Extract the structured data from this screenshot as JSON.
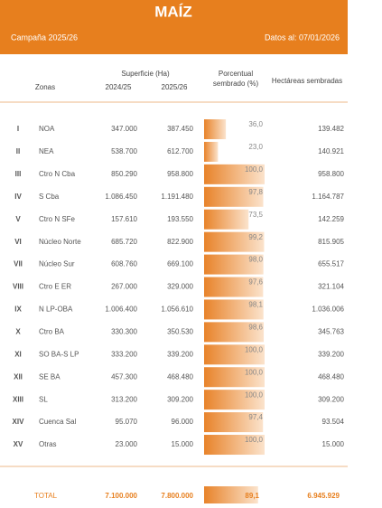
{
  "header": {
    "title": "MAÍZ",
    "campaign": "Campaña 2025/26",
    "date": "Datos al: 07/01/2026"
  },
  "table": {
    "columns": {
      "group": "Superficie (Ha)",
      "zones": "Zonas",
      "prev": "2024/25",
      "curr": "2025/26",
      "percent": "Porcentual sembrado (%)",
      "hectares": "Hectáreas sembradas"
    },
    "rows": [
      [
        "I",
        "NOA",
        "347.000",
        "387.450",
        "36,0",
        "139.482"
      ],
      [
        "II",
        "NEA",
        "538.700",
        "612.700",
        "23,0",
        "140.921"
      ],
      [
        "III",
        "Ctro N Cba",
        "850.290",
        "958.800",
        "100,0",
        "958.800"
      ],
      [
        "IV",
        "S Cba",
        "1.086.450",
        "1.191.480",
        "97,8",
        "1.164.787"
      ],
      [
        "V",
        "Ctro N SFe",
        "157.610",
        "193.550",
        "73,5",
        "142.259"
      ],
      [
        "VI",
        "Núcleo Norte",
        "685.720",
        "822.900",
        "99,2",
        "815.905"
      ],
      [
        "VII",
        "Núcleo Sur",
        "608.760",
        "669.100",
        "98,0",
        "655.517"
      ],
      [
        "VIII",
        "Ctro E ER",
        "267.000",
        "329.000",
        "97,6",
        "321.104"
      ],
      [
        "IX",
        "N LP-OBA",
        "1.006.400",
        "1.056.610",
        "98,1",
        "1.036.006"
      ],
      [
        "X",
        "Ctro BA",
        "330.300",
        "350.530",
        "98,6",
        "345.763"
      ],
      [
        "XI",
        "SO BA-S LP",
        "333.200",
        "339.200",
        "100,0",
        "339.200"
      ],
      [
        "XII",
        "SE BA",
        "457.300",
        "468.480",
        "100,0",
        "468.480"
      ],
      [
        "XIII",
        "SL",
        "313.200",
        "309.200",
        "100,0",
        "309.200"
      ],
      [
        "XIV",
        "Cuenca Sal",
        "95.070",
        "96.000",
        "97,4",
        "93.504"
      ],
      [
        "XV",
        "Otras",
        "23.000",
        "15.000",
        "100,0",
        "15.000"
      ]
    ],
    "percent_values": [
      36.0,
      23.0,
      100.0,
      97.8,
      73.5,
      99.2,
      98.0,
      97.6,
      98.1,
      98.6,
      100.0,
      100.0,
      100.0,
      97.4,
      100.0
    ],
    "total": {
      "label": "TOTAL",
      "prev": "7.100.000",
      "curr": "7.800.000",
      "percent": "89,1",
      "percent_value": 89.1,
      "hectares": "6.945.929"
    }
  }
}
